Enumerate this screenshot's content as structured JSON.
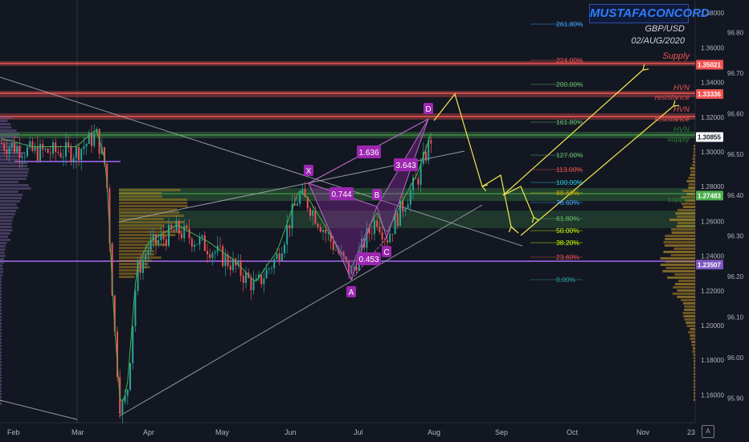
{
  "chart_data": {
    "type": "candlestick",
    "title": "GBP/USD",
    "date": "02/AUG/2020",
    "watermark": "MUSTAFACONCORD",
    "x_tick_labels": [
      "Feb",
      "Mar",
      "Apr",
      "May",
      "Jun",
      "Jul",
      "Aug",
      "Sep",
      "Oct",
      "Nov",
      "23"
    ],
    "y_axis_left": {
      "ticks": [
        "1.38000",
        "1.36000",
        "1.34000",
        "1.32000",
        "1.30000",
        "1.28000",
        "1.26000",
        "1.24000",
        "1.22000",
        "1.20000",
        "1.18000",
        "1.16000"
      ],
      "range": [
        1.144,
        1.3875
      ]
    },
    "y_axis_right": {
      "ticks": [
        "96.80",
        "96.70",
        "96.60",
        "96.50",
        "96.40",
        "96.30",
        "96.20",
        "96.10",
        "96.00",
        "95.90"
      ],
      "range": [
        95.84,
        96.88
      ]
    },
    "price_tags": [
      {
        "value": "1.35021",
        "color": "#f05350"
      },
      {
        "value": "1.33336",
        "color": "#f05350"
      },
      {
        "value": "1.30855",
        "color": "#ffffff"
      },
      {
        "value": "1.27483",
        "color": "#4caf50"
      },
      {
        "value": "1.23507",
        "color": "#7e57c2"
      }
    ],
    "zone_labels": [
      {
        "text": "Supply",
        "color": "#ef5350"
      },
      {
        "text": "HVN",
        "color": "#ef5350"
      },
      {
        "text": "resistance",
        "color": "#ef5350"
      },
      {
        "text": "HVN",
        "color": "#ef5350"
      },
      {
        "text": "resistance",
        "color": "#ef5350"
      },
      {
        "text": "HVN",
        "color": "#2e7d32"
      },
      {
        "text": "supply",
        "color": "#2e7d32"
      },
      {
        "text": "supply",
        "color": "#2e7d32"
      }
    ],
    "fib_levels": [
      {
        "label": "261.80%",
        "color": "#42a5f5"
      },
      {
        "label": "224.00%",
        "color": "#ef5350"
      },
      {
        "label": "200.00%",
        "color": "#66bb6a"
      },
      {
        "label": "161.80%",
        "color": "#66bb6a"
      },
      {
        "label": "127.00%",
        "color": "#66bb6a"
      },
      {
        "label": "113.00%",
        "color": "#ef5350"
      },
      {
        "label": "100.00%",
        "color": "#26c6da"
      },
      {
        "label": "88.60%",
        "color": "#c6a700"
      },
      {
        "label": "78.60%",
        "color": "#42a5f5"
      },
      {
        "label": "61.80%",
        "color": "#66bb6a"
      },
      {
        "label": "50.00%",
        "color": "#c6ff00"
      },
      {
        "label": "38.20%",
        "color": "#c6ff00"
      },
      {
        "label": "23.60%",
        "color": "#ef5350"
      },
      {
        "label": "0.00%",
        "color": "#26a69a"
      }
    ],
    "harmonic_pattern": {
      "points": [
        "X",
        "A",
        "B",
        "C",
        "D"
      ],
      "ratios": [
        "1.636",
        "0.744",
        "3.643",
        "0.453"
      ],
      "color": "#9c27b0"
    }
  }
}
